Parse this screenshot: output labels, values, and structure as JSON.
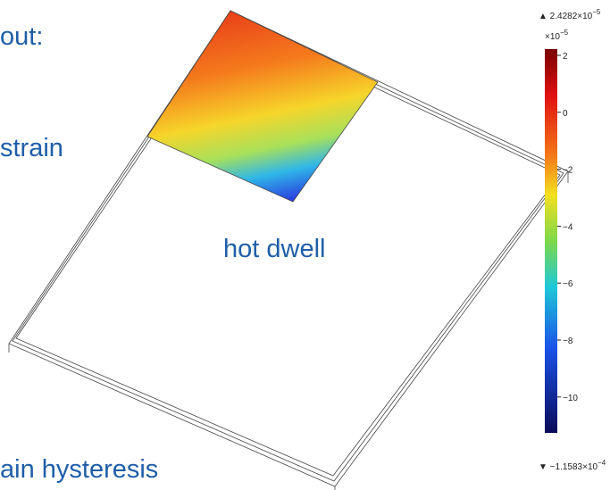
{
  "slide": {
    "lines": [
      "out:",
      "strain",
      "hot dwell",
      "ain hysteresis"
    ]
  },
  "colorbar": {
    "max": {
      "prefix": "▲ 2.4282×10",
      "exponent": "−5"
    },
    "scale": {
      "prefix": "×10",
      "exponent": "−5"
    },
    "ticks": [
      "2",
      "0",
      "−2",
      "−4",
      "−6",
      "−8",
      "−10"
    ],
    "min": {
      "prefix": "▼ −1.1583×10",
      "exponent": "−4"
    }
  }
}
